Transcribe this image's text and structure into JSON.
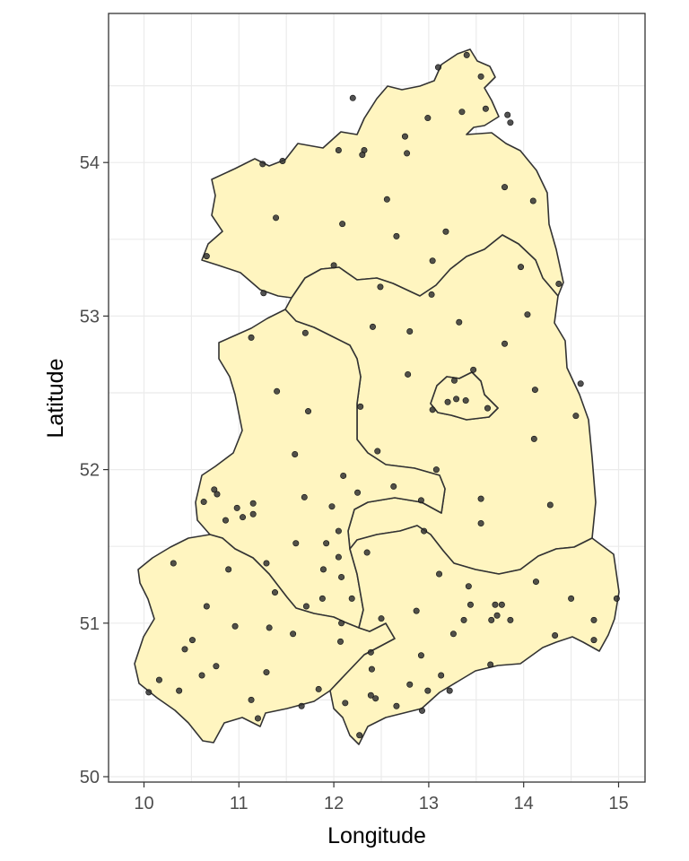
{
  "chart_data": {
    "type": "scatter",
    "title": "",
    "xlabel": "Longitude",
    "ylabel": "Latitude",
    "xlim": [
      9.6,
      15.3
    ],
    "ylim": [
      49.95,
      54.9
    ],
    "x_ticks": [
      10,
      11,
      12,
      13,
      14,
      15
    ],
    "y_ticks": [
      50,
      51,
      52,
      53,
      54
    ],
    "x_tick_labels": [
      "10",
      "11",
      "12",
      "13",
      "14",
      "15"
    ],
    "y_tick_labels": [
      "50",
      "51",
      "52",
      "53",
      "54"
    ],
    "grid": true,
    "background": "#ffffff",
    "region_fill": "#fff5c0",
    "point_color": "#333333",
    "points": [
      {
        "x": 12.05,
        "y": 54.08
      },
      {
        "x": 12.32,
        "y": 54.08
      },
      {
        "x": 12.75,
        "y": 54.17
      },
      {
        "x": 12.99,
        "y": 54.29
      },
      {
        "x": 13.35,
        "y": 54.33
      },
      {
        "x": 13.6,
        "y": 54.35
      },
      {
        "x": 13.55,
        "y": 54.56
      },
      {
        "x": 13.83,
        "y": 54.31
      },
      {
        "x": 11.25,
        "y": 53.99
      },
      {
        "x": 11.46,
        "y": 54.01
      },
      {
        "x": 12.3,
        "y": 54.05
      },
      {
        "x": 12.77,
        "y": 54.06
      },
      {
        "x": 13.8,
        "y": 53.84
      },
      {
        "x": 14.1,
        "y": 53.75
      },
      {
        "x": 12.56,
        "y": 53.76
      },
      {
        "x": 11.39,
        "y": 53.64
      },
      {
        "x": 12.09,
        "y": 53.6
      },
      {
        "x": 12.66,
        "y": 53.52
      },
      {
        "x": 13.18,
        "y": 53.55
      },
      {
        "x": 10.66,
        "y": 53.39
      },
      {
        "x": 12.0,
        "y": 53.33
      },
      {
        "x": 13.04,
        "y": 53.36
      },
      {
        "x": 13.97,
        "y": 53.32
      },
      {
        "x": 14.37,
        "y": 53.21
      },
      {
        "x": 11.26,
        "y": 53.15
      },
      {
        "x": 12.49,
        "y": 53.19
      },
      {
        "x": 13.03,
        "y": 53.14
      },
      {
        "x": 14.04,
        "y": 53.01
      },
      {
        "x": 12.41,
        "y": 52.93
      },
      {
        "x": 12.8,
        "y": 52.9
      },
      {
        "x": 13.32,
        "y": 52.96
      },
      {
        "x": 11.7,
        "y": 52.89
      },
      {
        "x": 11.13,
        "y": 52.86
      },
      {
        "x": 13.8,
        "y": 52.82
      },
      {
        "x": 12.78,
        "y": 52.62
      },
      {
        "x": 13.27,
        "y": 52.58
      },
      {
        "x": 13.47,
        "y": 52.65
      },
      {
        "x": 14.12,
        "y": 52.52
      },
      {
        "x": 14.6,
        "y": 52.56
      },
      {
        "x": 11.4,
        "y": 52.51
      },
      {
        "x": 13.29,
        "y": 52.46
      },
      {
        "x": 13.2,
        "y": 52.44
      },
      {
        "x": 13.39,
        "y": 52.45
      },
      {
        "x": 13.62,
        "y": 52.4
      },
      {
        "x": 12.28,
        "y": 52.41
      },
      {
        "x": 11.73,
        "y": 52.38
      },
      {
        "x": 13.04,
        "y": 52.39
      },
      {
        "x": 14.55,
        "y": 52.35
      },
      {
        "x": 14.11,
        "y": 52.2
      },
      {
        "x": 12.46,
        "y": 52.12
      },
      {
        "x": 11.59,
        "y": 52.1
      },
      {
        "x": 13.08,
        "y": 52.0
      },
      {
        "x": 12.1,
        "y": 51.96
      },
      {
        "x": 10.74,
        "y": 51.87
      },
      {
        "x": 12.63,
        "y": 51.89
      },
      {
        "x": 12.25,
        "y": 51.85
      },
      {
        "x": 10.77,
        "y": 51.84
      },
      {
        "x": 11.69,
        "y": 51.82
      },
      {
        "x": 12.92,
        "y": 51.8
      },
      {
        "x": 13.55,
        "y": 51.81
      },
      {
        "x": 10.63,
        "y": 51.79
      },
      {
        "x": 11.15,
        "y": 51.78
      },
      {
        "x": 14.28,
        "y": 51.77
      },
      {
        "x": 11.98,
        "y": 51.76
      },
      {
        "x": 10.98,
        "y": 51.75
      },
      {
        "x": 11.15,
        "y": 51.71
      },
      {
        "x": 11.04,
        "y": 51.69
      },
      {
        "x": 10.86,
        "y": 51.67
      },
      {
        "x": 13.55,
        "y": 51.65
      },
      {
        "x": 12.05,
        "y": 51.6
      },
      {
        "x": 12.95,
        "y": 51.6
      },
      {
        "x": 11.6,
        "y": 51.52
      },
      {
        "x": 11.92,
        "y": 51.52
      },
      {
        "x": 12.35,
        "y": 51.46
      },
      {
        "x": 12.05,
        "y": 51.43
      },
      {
        "x": 10.31,
        "y": 51.39
      },
      {
        "x": 11.29,
        "y": 51.39
      },
      {
        "x": 10.89,
        "y": 51.35
      },
      {
        "x": 11.89,
        "y": 51.35
      },
      {
        "x": 13.11,
        "y": 51.32
      },
      {
        "x": 12.08,
        "y": 51.3
      },
      {
        "x": 14.13,
        "y": 51.27
      },
      {
        "x": 13.42,
        "y": 51.24
      },
      {
        "x": 11.38,
        "y": 51.2
      },
      {
        "x": 11.88,
        "y": 51.16
      },
      {
        "x": 14.5,
        "y": 51.16
      },
      {
        "x": 14.98,
        "y": 51.16
      },
      {
        "x": 12.19,
        "y": 51.16
      },
      {
        "x": 13.7,
        "y": 51.12
      },
      {
        "x": 13.77,
        "y": 51.12
      },
      {
        "x": 13.44,
        "y": 51.12
      },
      {
        "x": 10.66,
        "y": 51.11
      },
      {
        "x": 11.71,
        "y": 51.11
      },
      {
        "x": 12.87,
        "y": 51.08
      },
      {
        "x": 13.66,
        "y": 51.02
      },
      {
        "x": 13.72,
        "y": 51.05
      },
      {
        "x": 13.86,
        "y": 51.02
      },
      {
        "x": 13.37,
        "y": 51.02
      },
      {
        "x": 12.08,
        "y": 51.0
      },
      {
        "x": 10.96,
        "y": 50.98
      },
      {
        "x": 11.32,
        "y": 50.97
      },
      {
        "x": 14.74,
        "y": 51.02
      },
      {
        "x": 12.5,
        "y": 51.03
      },
      {
        "x": 11.57,
        "y": 50.93
      },
      {
        "x": 13.26,
        "y": 50.93
      },
      {
        "x": 10.51,
        "y": 50.89
      },
      {
        "x": 12.07,
        "y": 50.88
      },
      {
        "x": 14.33,
        "y": 50.92
      },
      {
        "x": 14.74,
        "y": 50.89
      },
      {
        "x": 10.43,
        "y": 50.83
      },
      {
        "x": 12.39,
        "y": 50.81
      },
      {
        "x": 12.92,
        "y": 50.79
      },
      {
        "x": 13.65,
        "y": 50.73
      },
      {
        "x": 10.76,
        "y": 50.72
      },
      {
        "x": 11.29,
        "y": 50.68
      },
      {
        "x": 12.4,
        "y": 50.7
      },
      {
        "x": 10.61,
        "y": 50.66
      },
      {
        "x": 13.13,
        "y": 50.66
      },
      {
        "x": 10.16,
        "y": 50.63
      },
      {
        "x": 12.8,
        "y": 50.6
      },
      {
        "x": 11.84,
        "y": 50.57
      },
      {
        "x": 12.99,
        "y": 50.56
      },
      {
        "x": 13.22,
        "y": 50.56
      },
      {
        "x": 10.37,
        "y": 50.56
      },
      {
        "x": 12.39,
        "y": 50.53
      },
      {
        "x": 12.44,
        "y": 50.51
      },
      {
        "x": 10.05,
        "y": 50.55
      },
      {
        "x": 11.13,
        "y": 50.5
      },
      {
        "x": 12.12,
        "y": 50.48
      },
      {
        "x": 11.66,
        "y": 50.46
      },
      {
        "x": 12.66,
        "y": 50.46
      },
      {
        "x": 12.93,
        "y": 50.43
      },
      {
        "x": 11.2,
        "y": 50.38
      },
      {
        "x": 12.27,
        "y": 50.27
      },
      {
        "x": 13.86,
        "y": 54.26
      },
      {
        "x": 13.1,
        "y": 54.62
      },
      {
        "x": 13.4,
        "y": 54.7
      },
      {
        "x": 12.2,
        "y": 54.42
      }
    ]
  }
}
